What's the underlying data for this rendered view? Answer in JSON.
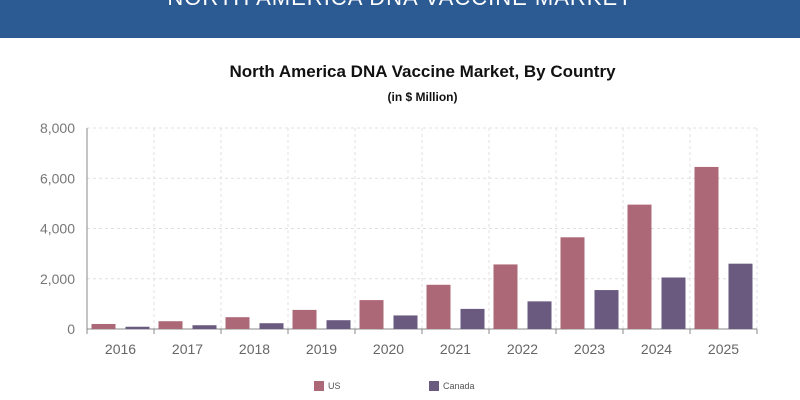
{
  "header": {
    "banner_text": "NORTH AMERICA DNA VACCINE MARKET"
  },
  "colors": {
    "banner": "#2c5a93",
    "series_us": "#ad6878",
    "series_canada": "#6a5a80"
  },
  "chart_data": {
    "type": "bar",
    "title": "North America DNA Vaccine Market, By Country",
    "subtitle": "(in $ Million)",
    "xlabel": "",
    "ylabel": "",
    "categories": [
      "2016",
      "2017",
      "2018",
      "2019",
      "2020",
      "2021",
      "2022",
      "2023",
      "2024",
      "2025"
    ],
    "series": [
      {
        "name": "US",
        "color": "#ad6878",
        "values": [
          200,
          310,
          470,
          760,
          1150,
          1760,
          2570,
          3650,
          4950,
          6450
        ]
      },
      {
        "name": "Canada",
        "color": "#6a5a80",
        "values": [
          90,
          150,
          230,
          350,
          540,
          800,
          1100,
          1550,
          2050,
          2600
        ]
      }
    ],
    "ylim": [
      0,
      8000
    ],
    "yticks": [
      0,
      2000,
      4000,
      6000,
      8000
    ],
    "ytick_labels": [
      "0",
      "2,000",
      "4,000",
      "6,000",
      "8,000"
    ],
    "grid": true,
    "legend_position": "bottom"
  }
}
